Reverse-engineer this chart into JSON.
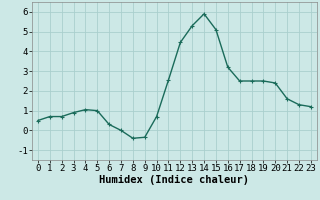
{
  "x": [
    0,
    1,
    2,
    3,
    4,
    5,
    6,
    7,
    8,
    9,
    10,
    11,
    12,
    13,
    14,
    15,
    16,
    17,
    18,
    19,
    20,
    21,
    22,
    23
  ],
  "y": [
    0.5,
    0.7,
    0.7,
    0.9,
    1.05,
    1.0,
    0.3,
    0.0,
    -0.4,
    -0.35,
    0.7,
    2.55,
    4.45,
    5.3,
    5.9,
    5.1,
    3.2,
    2.5,
    2.5,
    2.5,
    2.4,
    1.6,
    1.3,
    1.2
  ],
  "line_color": "#1a6b5a",
  "marker": "+",
  "marker_size": 3,
  "bg_color": "#cce8e6",
  "grid_color": "#aacfcd",
  "xlabel": "Humidex (Indice chaleur)",
  "xlabel_fontsize": 7.5,
  "ylim": [
    -1.5,
    6.5
  ],
  "xlim": [
    -0.5,
    23.5
  ],
  "yticks": [
    -1,
    0,
    1,
    2,
    3,
    4,
    5,
    6
  ],
  "xticks": [
    0,
    1,
    2,
    3,
    4,
    5,
    6,
    7,
    8,
    9,
    10,
    11,
    12,
    13,
    14,
    15,
    16,
    17,
    18,
    19,
    20,
    21,
    22,
    23
  ],
  "tick_fontsize": 6.5,
  "linewidth": 1.0
}
